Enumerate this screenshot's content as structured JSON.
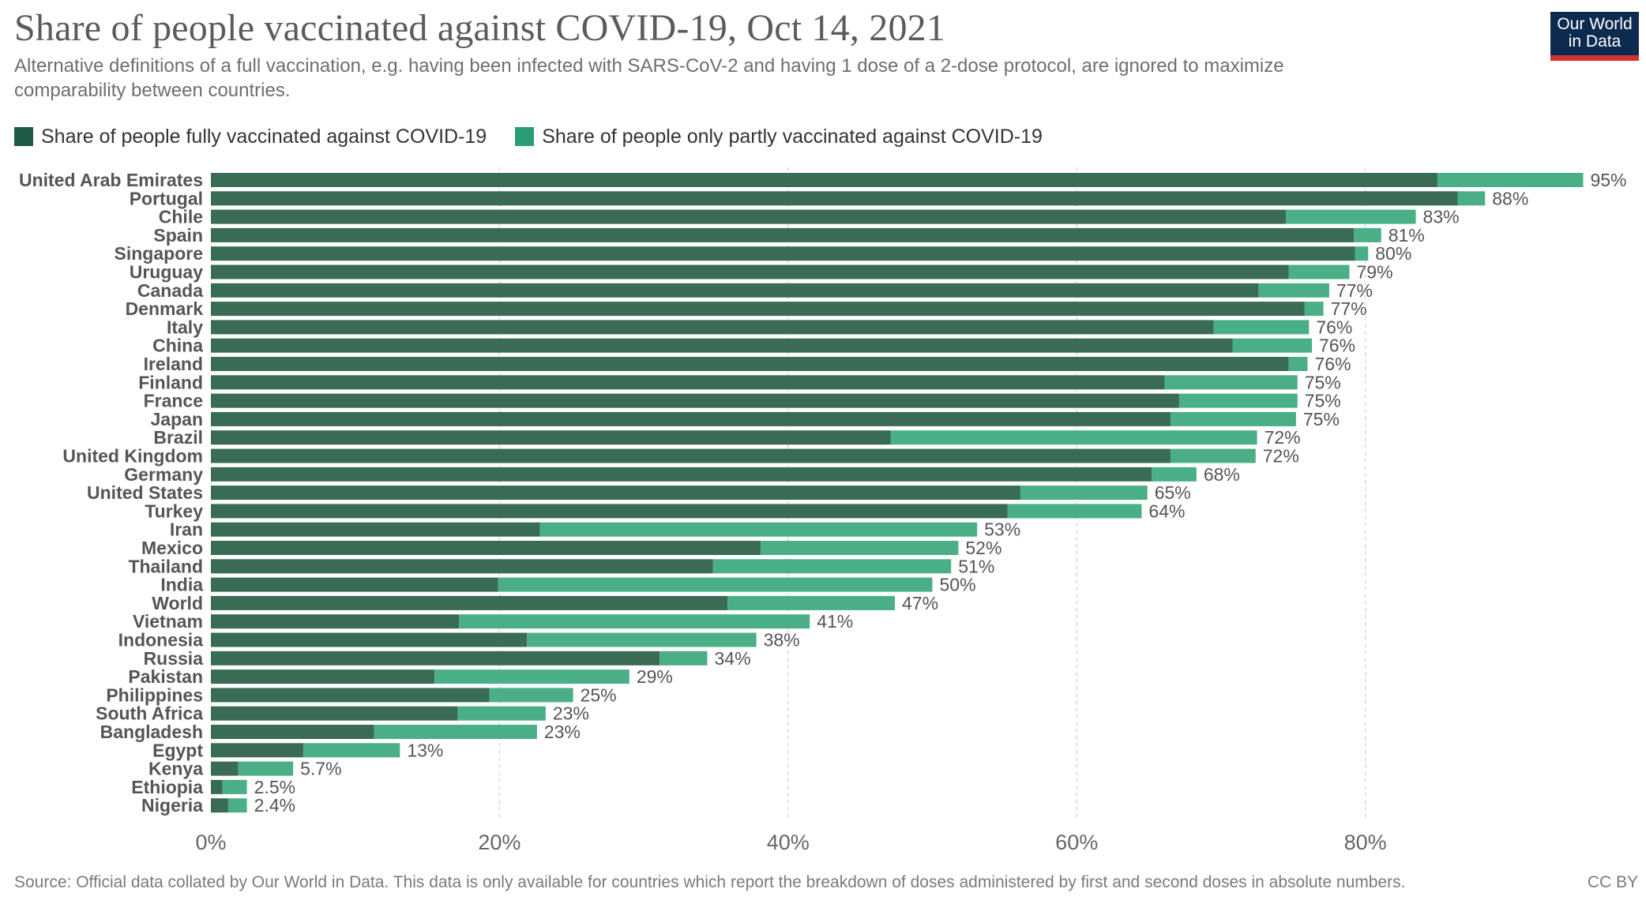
{
  "header": {
    "title": "Share of people vaccinated against COVID-19, Oct 14, 2021",
    "subtitle": "Alternative definitions of a full vaccination, e.g. having been infected with SARS-CoV-2 and having 1 dose of a 2-dose protocol, are ignored to maximize comparability between countries."
  },
  "logo": {
    "line1": "Our World",
    "line2": "in Data"
  },
  "footer": {
    "source": "Source: Official data collated by Our World in Data. This data is only available for countries which report the breakdown of doses administered by first and second doses in absolute numbers.",
    "license": "CC BY"
  },
  "colors": {
    "fully": "#3a6b55",
    "partly": "#4aaf87",
    "legend_fully": "#1f5a45",
    "legend_partly": "#2a9e74",
    "grid": "#d9d9d9"
  },
  "chart_data": {
    "type": "bar",
    "orientation": "horizontal",
    "stacked": true,
    "title": "Share of people vaccinated against COVID-19, Oct 14, 2021",
    "xlim": [
      0,
      95
    ],
    "x_ticks": [
      "0%",
      "20%",
      "40%",
      "60%",
      "80%"
    ],
    "x_tick_values": [
      0,
      20,
      40,
      60,
      80
    ],
    "grid": "vertical dashed",
    "legend_position": "top-left",
    "categories": [
      "United Arab Emirates",
      "Portugal",
      "Chile",
      "Spain",
      "Singapore",
      "Uruguay",
      "Canada",
      "Denmark",
      "Italy",
      "China",
      "Ireland",
      "Finland",
      "France",
      "Japan",
      "Brazil",
      "United Kingdom",
      "Germany",
      "United States",
      "Turkey",
      "Iran",
      "Mexico",
      "Thailand",
      "India",
      "World",
      "Vietnam",
      "Indonesia",
      "Russia",
      "Pakistan",
      "Philippines",
      "South Africa",
      "Bangladesh",
      "Egypt",
      "Kenya",
      "Ethiopia",
      "Nigeria"
    ],
    "series": [
      {
        "name": "Share of people fully vaccinated against COVID-19",
        "values": [
          85,
          86.4,
          74.5,
          79.2,
          79.3,
          74.7,
          72.6,
          75.8,
          69.5,
          70.8,
          74.7,
          66.1,
          67.1,
          66.5,
          47.1,
          66.5,
          65.2,
          56.1,
          55.2,
          22.8,
          38.1,
          34.8,
          19.9,
          35.8,
          17.2,
          21.9,
          31.1,
          15.5,
          19.3,
          17.1,
          11.3,
          6.4,
          1.9,
          0.8,
          1.2
        ]
      },
      {
        "name": "Share of people only partly vaccinated against COVID-19",
        "values": [
          10.1,
          1.9,
          9,
          1.9,
          0.9,
          4.2,
          4.9,
          1.3,
          6.6,
          5.5,
          1.3,
          9.2,
          8.2,
          8.7,
          25.4,
          5.9,
          3.1,
          8.8,
          9.3,
          30.3,
          13.7,
          16.5,
          30.1,
          11.6,
          24.3,
          15.9,
          3.3,
          13.5,
          5.8,
          6.1,
          11.3,
          6.7,
          3.8,
          1.7,
          1.3
        ]
      }
    ],
    "labels": [
      "95%",
      "88%",
      "83%",
      "81%",
      "80%",
      "79%",
      "77%",
      "77%",
      "76%",
      "76%",
      "76%",
      "75%",
      "75%",
      "75%",
      "72%",
      "72%",
      "68%",
      "65%",
      "64%",
      "53%",
      "52%",
      "51%",
      "50%",
      "47%",
      "41%",
      "38%",
      "34%",
      "29%",
      "25%",
      "23%",
      "23%",
      "13%",
      "5.7%",
      "2.5%",
      "2.4%"
    ]
  }
}
